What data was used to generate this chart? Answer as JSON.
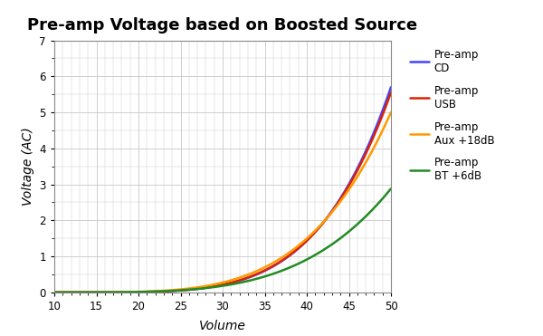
{
  "title": "Pre-amp Voltage based on Boosted Source",
  "xlabel": "Volume",
  "ylabel": "Voltage (AC)",
  "xlim": [
    10,
    50
  ],
  "ylim": [
    0,
    7
  ],
  "xticks": [
    10,
    15,
    20,
    25,
    30,
    35,
    40,
    45,
    50
  ],
  "yticks": [
    0,
    1,
    2,
    3,
    4,
    5,
    6,
    7
  ],
  "series": [
    {
      "label": "Pre-amp\nCD",
      "color": "#4444FF",
      "exponent": 4.8,
      "scale": 5.7
    },
    {
      "label": "Pre-amp\nUSB",
      "color": "#DD2200",
      "exponent": 4.7,
      "scale": 5.55
    },
    {
      "label": "Pre-amp\nAux +18dB",
      "color": "#FF9900",
      "exponent": 4.2,
      "scale": 5.0
    },
    {
      "label": "Pre-amp\nBT +6dB",
      "color": "#228B22",
      "exponent": 4.0,
      "scale": 2.88
    }
  ],
  "background_color": "#ffffff",
  "grid_color": "#c8c8c8",
  "title_fontsize": 13,
  "axis_label_fontsize": 10,
  "tick_fontsize": 8.5,
  "legend_fontsize": 8.5,
  "linewidth": 1.8,
  "figwidth": 6.0,
  "figheight": 3.71,
  "dpi": 100
}
